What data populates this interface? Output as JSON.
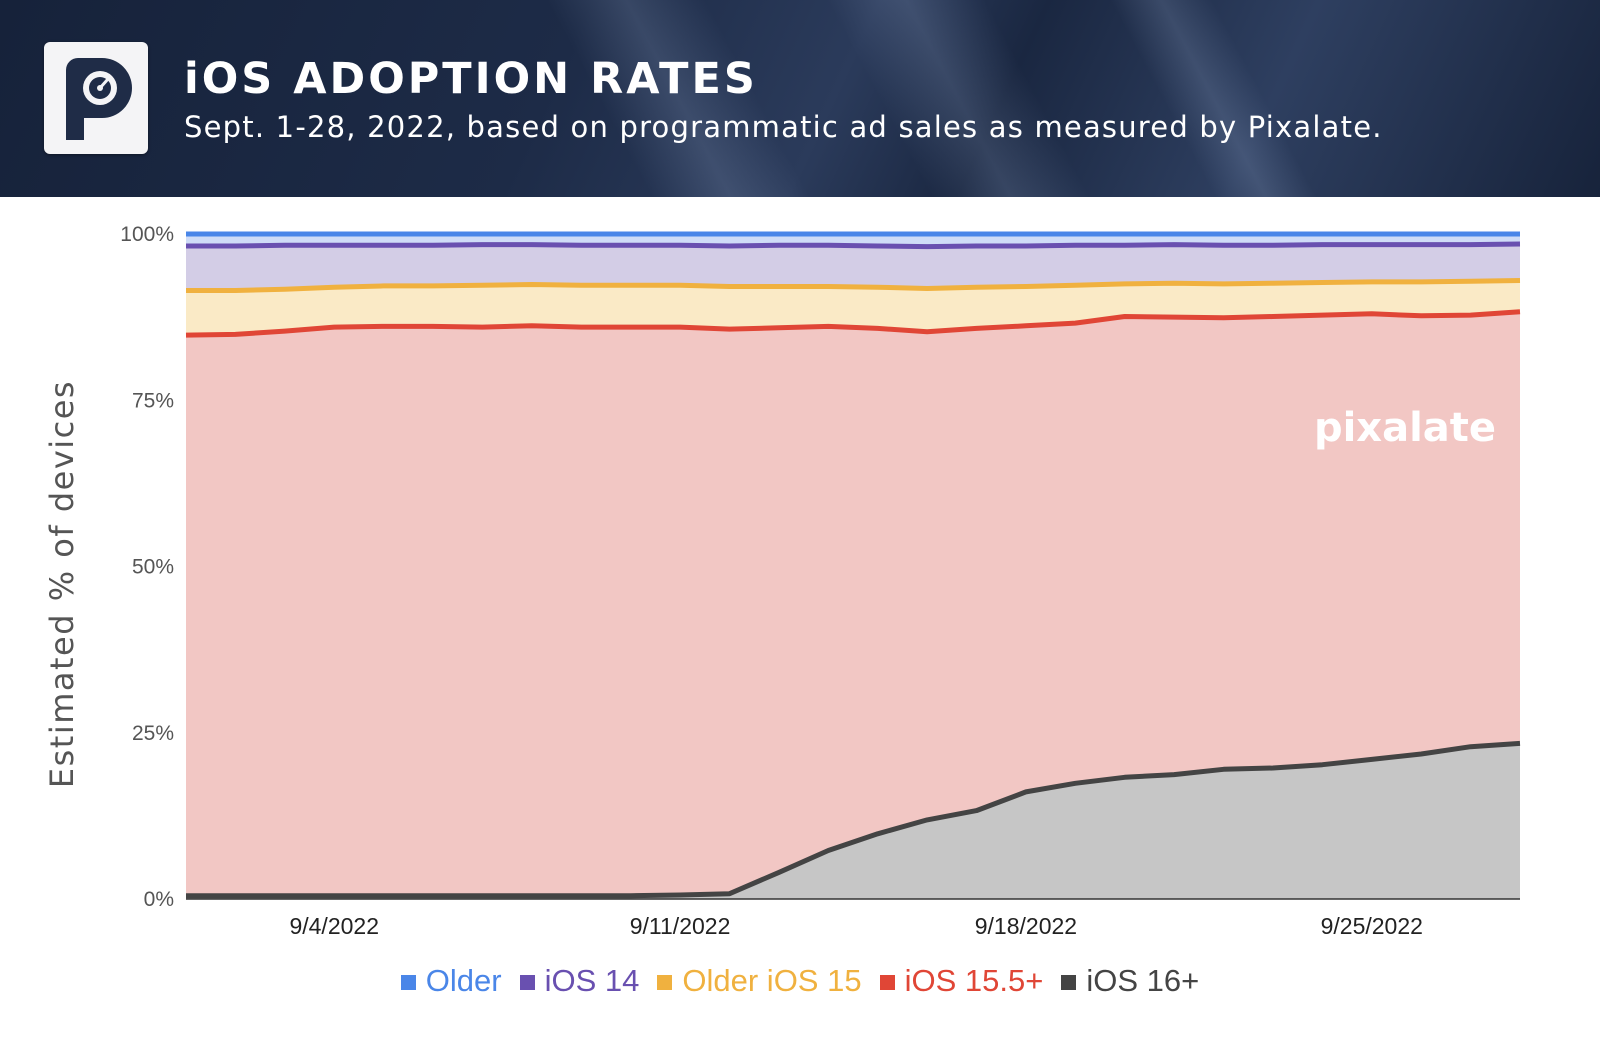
{
  "header": {
    "title": "iOS ADOPTION RATES",
    "subtitle": "Sept. 1-28, 2022, based on programmatic ad sales as measured by Pixalate."
  },
  "watermark": "pixalate",
  "colors": {
    "header_bg": "#1d2b47",
    "Older": "#4a86e8",
    "iOS 14": "#6950b0",
    "Older iOS 15": "#f0b13f",
    "iOS 15.5+": "#e04636",
    "iOS 16+": "#444444"
  },
  "chart_data": {
    "type": "area",
    "stacked": true,
    "ylabel": "Estimated % of devices",
    "ylim": [
      0,
      100
    ],
    "yticks": [
      "0%",
      "25%",
      "50%",
      "75%",
      "100%"
    ],
    "xticks": [
      "9/4/2022",
      "9/11/2022",
      "9/18/2022",
      "9/25/2022"
    ],
    "x": [
      "9/1/2022",
      "9/2/2022",
      "9/3/2022",
      "9/4/2022",
      "9/5/2022",
      "9/6/2022",
      "9/7/2022",
      "9/8/2022",
      "9/9/2022",
      "9/10/2022",
      "9/11/2022",
      "9/12/2022",
      "9/13/2022",
      "9/14/2022",
      "9/15/2022",
      "9/16/2022",
      "9/17/2022",
      "9/18/2022",
      "9/19/2022",
      "9/20/2022",
      "9/21/2022",
      "9/22/2022",
      "9/23/2022",
      "9/24/2022",
      "9/25/2022",
      "9/26/2022",
      "9/27/2022",
      "9/28/2022"
    ],
    "cumulative_top": {
      "iOS 16+": [
        0.5,
        0.5,
        0.5,
        0.5,
        0.5,
        0.5,
        0.5,
        0.5,
        0.5,
        0.5,
        0.6,
        0.8,
        4.0,
        7.3,
        9.8,
        11.9,
        13.3,
        16.1,
        17.4,
        18.3,
        18.7,
        19.5,
        19.7,
        20.2,
        21.0,
        21.8,
        22.9,
        23.4
      ],
      "iOS 15.5+": [
        84.8,
        84.9,
        85.4,
        86.0,
        86.1,
        86.1,
        86.0,
        86.2,
        86.0,
        86.0,
        86.0,
        85.7,
        85.9,
        86.1,
        85.8,
        85.3,
        85.8,
        86.2,
        86.6,
        87.6,
        87.5,
        87.4,
        87.6,
        87.8,
        88.0,
        87.7,
        87.8,
        88.3
      ],
      "Older iOS 15": [
        91.5,
        91.5,
        91.7,
        92.0,
        92.2,
        92.2,
        92.3,
        92.4,
        92.3,
        92.3,
        92.3,
        92.1,
        92.1,
        92.1,
        92.0,
        91.8,
        92.0,
        92.1,
        92.3,
        92.5,
        92.6,
        92.5,
        92.6,
        92.7,
        92.8,
        92.8,
        92.9,
        93.0
      ],
      "iOS 14": [
        98.2,
        98.2,
        98.3,
        98.3,
        98.3,
        98.3,
        98.4,
        98.4,
        98.3,
        98.3,
        98.3,
        98.2,
        98.3,
        98.3,
        98.2,
        98.1,
        98.2,
        98.2,
        98.3,
        98.3,
        98.4,
        98.3,
        98.3,
        98.4,
        98.4,
        98.4,
        98.4,
        98.5
      ],
      "Older": [
        100,
        100,
        100,
        100,
        100,
        100,
        100,
        100,
        100,
        100,
        100,
        100,
        100,
        100,
        100,
        100,
        100,
        100,
        100,
        100,
        100,
        100,
        100,
        100,
        100,
        100,
        100,
        100
      ]
    },
    "series": [
      {
        "name": "Older"
      },
      {
        "name": "iOS 14"
      },
      {
        "name": "Older iOS 15"
      },
      {
        "name": "iOS 15.5+"
      },
      {
        "name": "iOS 16+"
      }
    ],
    "legend_position": "bottom",
    "grid": true
  }
}
